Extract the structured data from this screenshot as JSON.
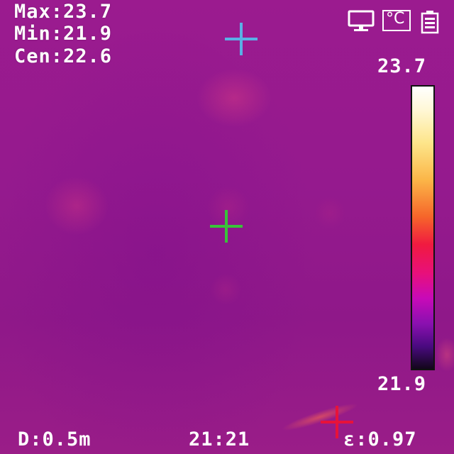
{
  "readings": {
    "max": "Max:23.7",
    "min": "Min:21.9",
    "cen": "Cen:22.6"
  },
  "scale": {
    "high": "23.7",
    "low": "21.9",
    "palette": [
      "#ffffff",
      "#fde58a",
      "#fbb648",
      "#f6662a",
      "#f01a40",
      "#e8107a",
      "#c80ab8",
      "#8a10b0",
      "#4a0a80",
      "#12061a"
    ]
  },
  "status_icons": [
    "monitor-icon",
    "celsius-unit-icon",
    "battery-icon"
  ],
  "unit_symbol": "°C",
  "footer": {
    "distance": "D:0.5m",
    "time": "21:21",
    "emissivity": "ε:0.97"
  },
  "markers": {
    "max_color": "#e8123a",
    "min_color": "#5ab0e6",
    "center_color": "#39c23a"
  }
}
